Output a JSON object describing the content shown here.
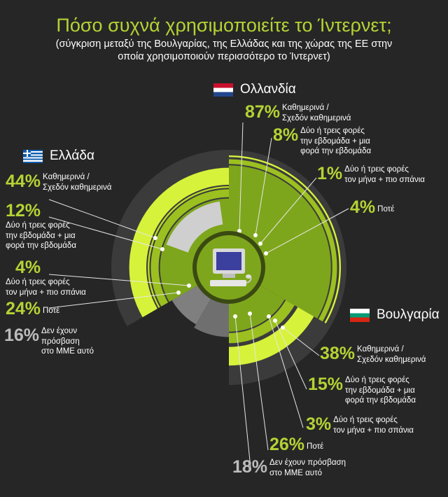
{
  "title": "Πόσο συχνά χρησιμοποιείτε το Ίντερνετ;",
  "subtitle": "(σύγκριση μεταξύ της Βουλγαρίας, της Ελλάδας και της χώρας της ΕΕ στην οποία χρησιμοποιούν περισσότερο το Ίντερνετ)",
  "colors": {
    "accent": "#b4d334",
    "background": "#262626",
    "no_access": "#bdbdbd"
  },
  "center_icon": "computer-icon",
  "chart_data": {
    "type": "pie",
    "groups": [
      {
        "country": "Ολλανδία",
        "flag": "netherlands-flag",
        "items": [
          {
            "value": 87,
            "label": "Καθημερινά /\nΣχεδόν καθημερινά"
          },
          {
            "value": 8,
            "label": "Δύο ή τρεις φορές\nτην εβδομάδα + μια\nφορά την εβδομάδα"
          },
          {
            "value": 1,
            "label": "Δύο ή τρεις φορές\nτον μήνα + πιο σπάνια"
          },
          {
            "value": 4,
            "label": "Ποτέ"
          }
        ]
      },
      {
        "country": "Βουλγαρία",
        "flag": "bulgaria-flag",
        "items": [
          {
            "value": 38,
            "label": "Καθημερινά /\nΣχεδόν καθημερινά"
          },
          {
            "value": 15,
            "label": "Δύο ή τρεις φορές\nτην εβδομάδα + μια\nφορά την εβδομάδα"
          },
          {
            "value": 3,
            "label": "Δύο ή τρεις φορές\nτον μήνα + πιο σπάνια"
          },
          {
            "value": 26,
            "label": "Ποτέ"
          },
          {
            "value": 18,
            "label": "Δεν έχουν πρόσβαση\nστο ΜΜΕ αυτό"
          }
        ]
      },
      {
        "country": "Ελλάδα",
        "flag": "greece-flag",
        "items": [
          {
            "value": 44,
            "label": "Καθημερινά /\nΣχεδόν καθημερινά"
          },
          {
            "value": 12,
            "label": "Δύο ή τρεις φορές\nτην εβδομάδα + μια\nφορά την εβδομάδα"
          },
          {
            "value": 4,
            "label": "Δύο ή τρεις φορές\nτον μήνα + πιο σπάνια"
          },
          {
            "value": 24,
            "label": "Ποτέ"
          },
          {
            "value": 16,
            "label": "Δεν έχουν\nπρόσβαση\nστο ΜΜΕ αυτό"
          }
        ]
      }
    ]
  }
}
